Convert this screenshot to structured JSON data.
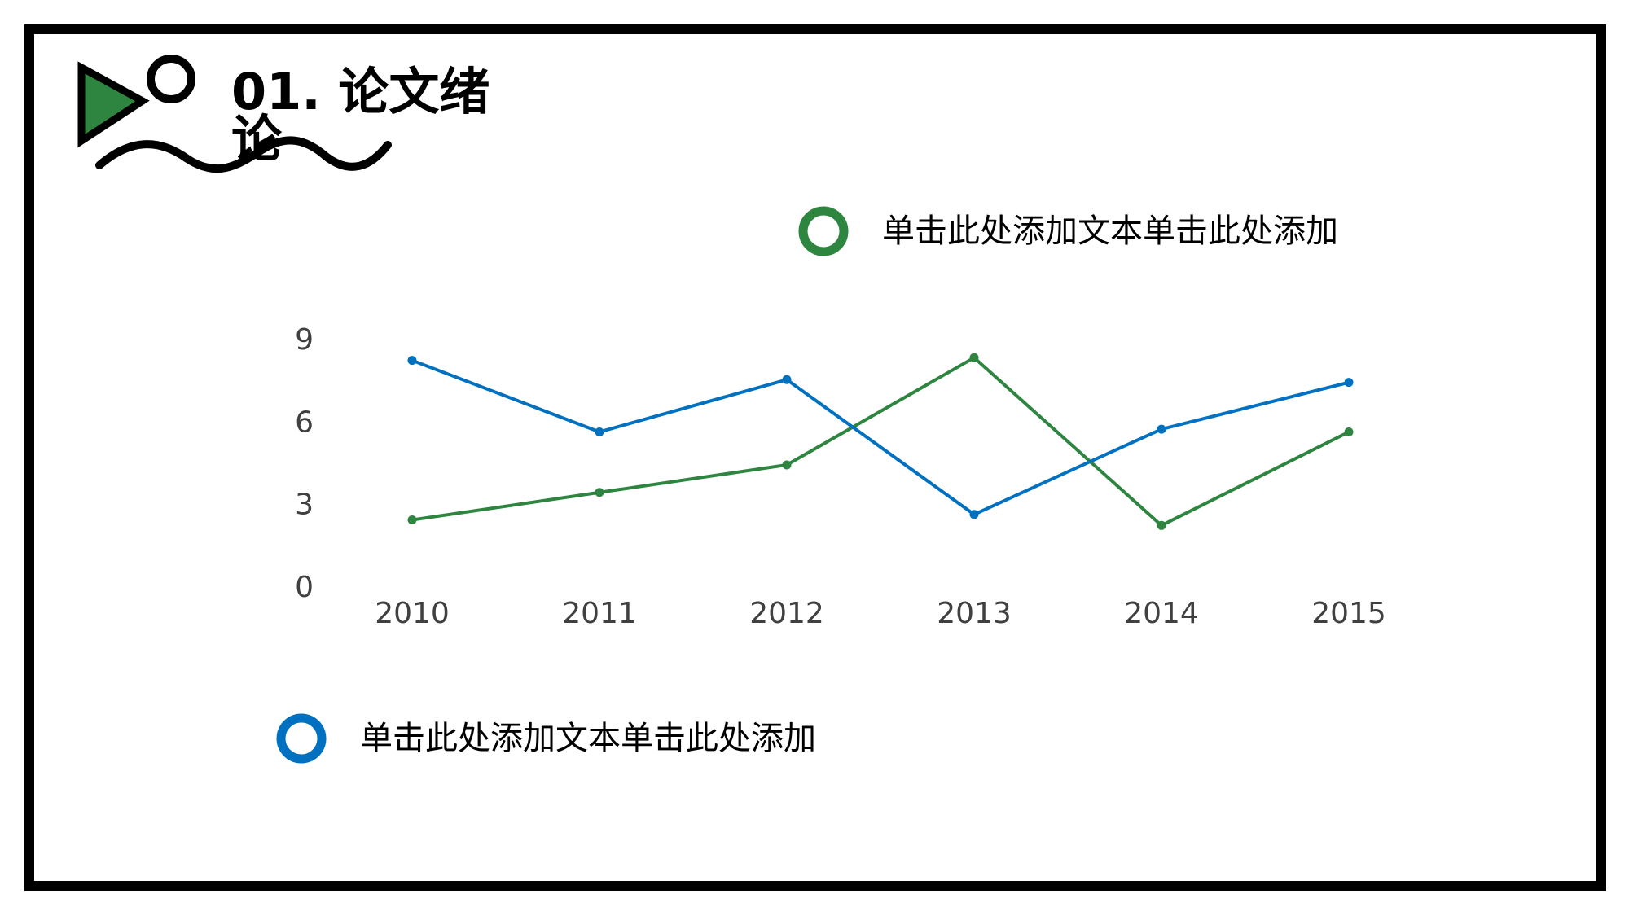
{
  "chart_data": {
    "type": "line",
    "title": "01. 论文绪论",
    "categories": [
      "2010",
      "2011",
      "2012",
      "2013",
      "2014",
      "2015"
    ],
    "series": [
      {
        "name": "单击此处添加文本单击此处添加",
        "color": "#2e8540",
        "values": [
          2.5,
          3.5,
          4.5,
          8.4,
          2.3,
          5.7
        ]
      },
      {
        "name": "单击此处添加文本单击此处添加",
        "color": "#0070c0",
        "values": [
          8.3,
          5.7,
          7.6,
          2.7,
          5.8,
          7.5
        ]
      }
    ],
    "ylim": [
      0,
      9
    ],
    "yticks": [
      0,
      3,
      6,
      9
    ],
    "grid": false
  }
}
